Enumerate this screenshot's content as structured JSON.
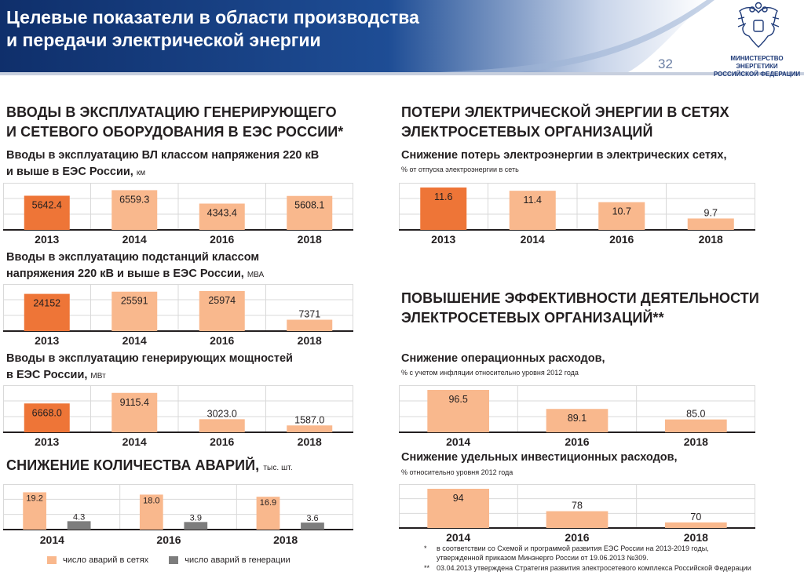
{
  "header": {
    "title_line1": "Целевые показатели в области производства",
    "title_line2": "и передачи электрической энергии",
    "page_number": "32",
    "ministry_line1": "МИНИСТЕРСТВО ЭНЕРГЕТИКИ",
    "ministry_line2": "РОССИЙСКОЙ ФЕДЕРАЦИИ",
    "colors": {
      "banner": "#143a7a",
      "banner_light": "#dfe6f1"
    }
  },
  "left": {
    "section_title_line1": "ВВОДЫ В ЭКСПЛУАТАЦИЮ ГЕНЕРИРУЮЩЕГО",
    "section_title_line2": "И СЕТЕВОГО ОБОРУДОВАНИЯ В ЕЭС РОССИИ*",
    "vl_title_line1": "Вводы в эксплуатацию ВЛ классом напряжения 220 кВ",
    "vl_title_line2": "и выше в ЕЭС России,",
    "vl_unit": "км",
    "ps_title_line1": "Вводы в эксплуатацию подстанций классом",
    "ps_title_line2": "напряжения 220 кВ и выше в ЕЭС России,",
    "ps_unit": "МВА",
    "gen_title_line1": "Вводы в эксплуатацию генерирующих мощностей",
    "gen_title_line2": "в ЕЭС России,",
    "gen_unit": "МВт",
    "acc_title": "СНИЖЕНИЕ КОЛИЧЕСТВА АВАРИЙ,",
    "acc_unit": "тыс. шт.",
    "legend_grid": "число аварий в сетях",
    "legend_gen": "число аварий в генерации"
  },
  "right": {
    "loss_section_line1": "ПОТЕРИ ЭЛЕКТРИЧЕСКОЙ ЭНЕРГИИ В СЕТЯХ",
    "loss_section_line2": "ЭЛЕКТРОСЕТЕВЫХ ОРГАНИЗАЦИЙ",
    "loss_title": "Снижение потерь электроэнергии в электрических сетях,",
    "loss_note": "% от отпуска электроэнергии в сеть",
    "eff_section_line1": "ПОВЫШЕНИЕ ЭФФЕКТИВНОСТИ ДЕЯТЕЛЬНОСТИ",
    "eff_section_line2": "ЭЛЕКТРОСЕТЕВЫХ ОРГАНИЗАЦИЙ**",
    "opex_title": "Снижение операционных расходов,",
    "opex_note": "% с учетом инфляции относительно уровня 2012 года",
    "capex_title": "Снижение удельных инвестиционных расходов,",
    "capex_note": "% относительно уровня 2012 года"
  },
  "footnotes": {
    "n1_mark": "*",
    "n1_line1": "в соответствии со Схемой и программой развития ЕЭС России на 2013-2019 годы,",
    "n1_line2": "утвержденной приказом Минэнерго России от 19.06.2013 №309.",
    "n2_mark": "**",
    "n2_line1": "03.04.2013 утверждена Стратегия развития электросетевого комплекса Российской Федерации"
  },
  "colors": {
    "dark_bar": "#ee7537",
    "light_bar": "#f9b88d",
    "gray_bar": "#7d7d7d",
    "grid": "#d9d9d9"
  },
  "chart_data": [
    {
      "id": "vl",
      "type": "bar",
      "categories": [
        "2013",
        "2014",
        "2016",
        "2018"
      ],
      "values": [
        5642.4,
        6559.3,
        4343.4,
        5608.1
      ],
      "labels": [
        "5642.4",
        "6559.3",
        "4343.4",
        "5608.1"
      ],
      "highlight": [
        0
      ],
      "ylim": [
        0,
        7000
      ]
    },
    {
      "id": "ps",
      "type": "bar",
      "categories": [
        "2013",
        "2014",
        "2016",
        "2018"
      ],
      "values": [
        24152,
        25591,
        25974,
        7371
      ],
      "labels": [
        "24152",
        "25591",
        "25974",
        "7371"
      ],
      "highlight": [
        0
      ],
      "ylim": [
        0,
        27500
      ]
    },
    {
      "id": "gen",
      "type": "bar",
      "categories": [
        "2013",
        "2014",
        "2016",
        "2018"
      ],
      "values": [
        6668.0,
        9115.4,
        3023.0,
        1587.0
      ],
      "labels": [
        "6668.0",
        "9115.4",
        "3023.0",
        "1587.0"
      ],
      "highlight": [
        0
      ],
      "ylim": [
        0,
        9800
      ]
    },
    {
      "id": "acc",
      "type": "bar",
      "categories": [
        "2014",
        "2016",
        "2018"
      ],
      "series": [
        {
          "name": "число аварий в сетях",
          "values": [
            19.2,
            18.0,
            16.9
          ],
          "labels": [
            "19.2",
            "18.0",
            "16.9"
          ]
        },
        {
          "name": "число аварий в генерации",
          "values": [
            4.3,
            3.9,
            3.6
          ],
          "labels": [
            "4.3",
            "3.9",
            "3.6"
          ]
        }
      ],
      "ylim": [
        0,
        21
      ]
    },
    {
      "id": "loss",
      "type": "bar",
      "categories": [
        "2013",
        "2014",
        "2016",
        "2018"
      ],
      "values": [
        11.6,
        11.4,
        10.7,
        9.7
      ],
      "labels": [
        "11.6",
        "11.4",
        "10.7",
        "9.7"
      ],
      "highlight": [
        0
      ],
      "ylim": [
        9.0,
        11.6
      ]
    },
    {
      "id": "opex",
      "type": "bar",
      "categories": [
        "2014",
        "2016",
        "2018"
      ],
      "values": [
        96.5,
        89.1,
        85.0
      ],
      "labels": [
        "96.5",
        "89.1",
        "85.0"
      ],
      "highlight": [],
      "ylim": [
        80,
        96.5
      ]
    },
    {
      "id": "capex",
      "type": "bar",
      "categories": [
        "2014",
        "2016",
        "2018"
      ],
      "values": [
        94,
        78,
        70
      ],
      "labels": [
        "94",
        "78",
        "70"
      ],
      "highlight": [],
      "ylim": [
        66,
        94
      ]
    }
  ]
}
